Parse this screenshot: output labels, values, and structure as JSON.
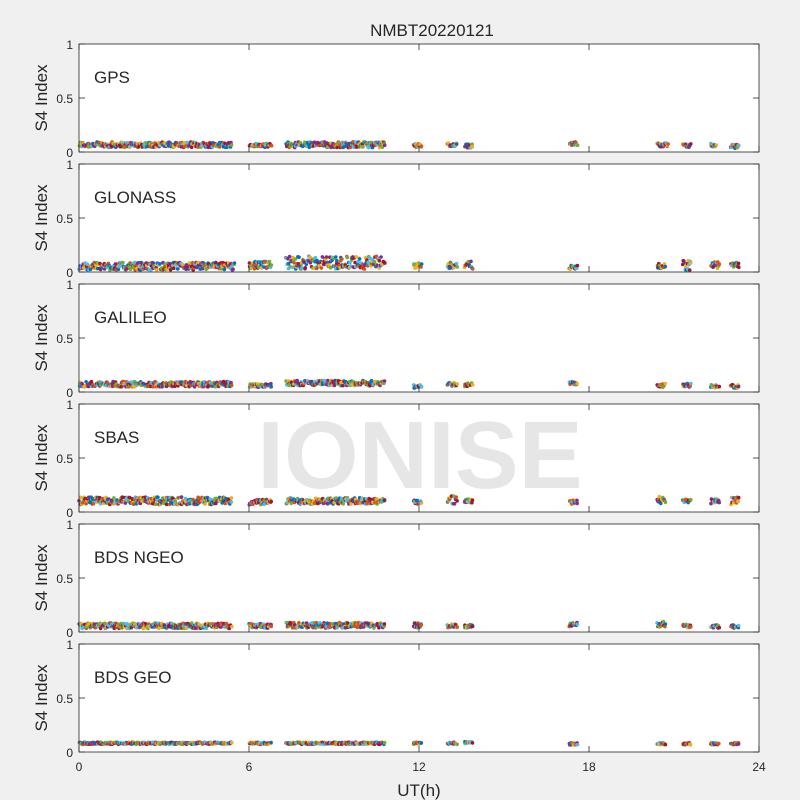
{
  "figure": {
    "title": "NMBT20220121",
    "xlabel": "UT(h)",
    "watermark": "IONISE",
    "background": "#f0f0f0",
    "axes_background": "#ffffff",
    "axis_color": "#262626"
  },
  "chart_data": {
    "type": "scatter",
    "xlim": [
      0,
      24
    ],
    "ylim": [
      0,
      1
    ],
    "x_ticks": [
      0,
      6,
      12,
      18,
      24
    ],
    "y_ticks": [
      0,
      0.5,
      1
    ],
    "ylabel": "S4 Index",
    "colors": [
      "#0072bd",
      "#d95319",
      "#edb120",
      "#7e2f8e",
      "#77ac30",
      "#4dbeee",
      "#a2142f"
    ],
    "panels": [
      {
        "label": "GPS",
        "show_x_ticks": false,
        "base": 0.055,
        "spread": 0.045,
        "segments": [
          {
            "x": [
              0,
              5.4
            ],
            "base": 0.065,
            "spread": 0.05
          },
          {
            "x": [
              6.0,
              6.8
            ],
            "base": 0.06
          },
          {
            "x": [
              7.3,
              10.8
            ],
            "base": 0.065,
            "spread": 0.055
          },
          {
            "x": [
              11.8,
              12.1
            ],
            "base": 0.06
          },
          {
            "x": [
              13.0,
              13.35
            ],
            "base": 0.065
          },
          {
            "x": [
              13.6,
              13.9
            ],
            "base": 0.055
          },
          {
            "x": [
              17.3,
              17.6
            ],
            "base": 0.075
          },
          {
            "x": [
              20.4,
              20.8
            ],
            "base": 0.065
          },
          {
            "x": [
              21.3,
              21.6
            ],
            "base": 0.06
          },
          {
            "x": [
              22.3,
              22.5
            ],
            "base": 0.06
          },
          {
            "x": [
              23.0,
              23.3
            ],
            "base": 0.05
          }
        ]
      },
      {
        "label": "GLONASS",
        "show_x_ticks": false,
        "segments": [
          {
            "x": [
              0,
              5.5
            ],
            "base": 0.05,
            "spread": 0.07
          },
          {
            "x": [
              6.0,
              6.8
            ],
            "base": 0.06,
            "spread": 0.07
          },
          {
            "x": [
              7.3,
              10.8
            ],
            "base": 0.08,
            "spread": 0.12
          },
          {
            "x": [
              11.8,
              12.1
            ],
            "base": 0.06,
            "spread": 0.06
          },
          {
            "x": [
              13.0,
              13.35
            ],
            "base": 0.06,
            "spread": 0.06
          },
          {
            "x": [
              13.6,
              13.9
            ],
            "base": 0.06,
            "spread": 0.07
          },
          {
            "x": [
              17.3,
              17.6
            ],
            "base": 0.04
          },
          {
            "x": [
              20.4,
              20.7
            ],
            "base": 0.05,
            "spread": 0.05
          },
          {
            "x": [
              21.3,
              21.6
            ],
            "base": 0.06,
            "spread": 0.1
          },
          {
            "x": [
              22.3,
              22.6
            ],
            "base": 0.06,
            "spread": 0.06
          },
          {
            "x": [
              23.0,
              23.3
            ],
            "base": 0.06,
            "spread": 0.05
          }
        ]
      },
      {
        "label": "GALILEO",
        "show_x_ticks": false,
        "segments": [
          {
            "x": [
              0,
              5.4
            ],
            "base": 0.07,
            "spread": 0.05
          },
          {
            "x": [
              6.0,
              6.8
            ],
            "base": 0.06
          },
          {
            "x": [
              7.3,
              10.8
            ],
            "base": 0.08,
            "spread": 0.05
          },
          {
            "x": [
              11.8,
              12.1
            ],
            "base": 0.05
          },
          {
            "x": [
              13.0,
              13.35
            ],
            "base": 0.07
          },
          {
            "x": [
              13.6,
              13.9
            ],
            "base": 0.065
          },
          {
            "x": [
              17.3,
              17.6
            ],
            "base": 0.08
          },
          {
            "x": [
              20.4,
              20.7
            ],
            "base": 0.06
          },
          {
            "x": [
              21.3,
              21.6
            ],
            "base": 0.06
          },
          {
            "x": [
              22.3,
              22.6
            ],
            "base": 0.05
          },
          {
            "x": [
              23.0,
              23.3
            ],
            "base": 0.05
          }
        ]
      },
      {
        "label": "SBAS",
        "show_x_ticks": false,
        "segments": [
          {
            "x": [
              0,
              5.4
            ],
            "base": 0.1,
            "spread": 0.07
          },
          {
            "x": [
              6.0,
              6.8
            ],
            "base": 0.09,
            "spread": 0.05
          },
          {
            "x": [
              7.3,
              10.8
            ],
            "base": 0.1,
            "spread": 0.06
          },
          {
            "x": [
              11.8,
              12.1
            ],
            "base": 0.09
          },
          {
            "x": [
              13.0,
              13.35
            ],
            "base": 0.11,
            "spread": 0.08
          },
          {
            "x": [
              13.6,
              13.9
            ],
            "base": 0.1
          },
          {
            "x": [
              17.3,
              17.6
            ],
            "base": 0.09
          },
          {
            "x": [
              20.4,
              20.7
            ],
            "base": 0.11,
            "spread": 0.07
          },
          {
            "x": [
              21.3,
              21.6
            ],
            "base": 0.1
          },
          {
            "x": [
              22.3,
              22.6
            ],
            "base": 0.1,
            "spread": 0.05
          },
          {
            "x": [
              23.0,
              23.3
            ],
            "base": 0.1,
            "spread": 0.07
          }
        ]
      },
      {
        "label": "BDS NGEO",
        "show_x_ticks": false,
        "segments": [
          {
            "x": [
              0,
              5.4
            ],
            "base": 0.055,
            "spread": 0.05
          },
          {
            "x": [
              6.0,
              6.8
            ],
            "base": 0.055,
            "spread": 0.04
          },
          {
            "x": [
              7.3,
              10.8
            ],
            "base": 0.06,
            "spread": 0.05
          },
          {
            "x": [
              11.8,
              12.1
            ],
            "base": 0.06,
            "spread": 0.05
          },
          {
            "x": [
              13.0,
              13.35
            ],
            "base": 0.055
          },
          {
            "x": [
              13.6,
              13.9
            ],
            "base": 0.05
          },
          {
            "x": [
              17.3,
              17.6
            ],
            "base": 0.06,
            "spread": 0.05
          },
          {
            "x": [
              20.4,
              20.7
            ],
            "base": 0.07,
            "spread": 0.05
          },
          {
            "x": [
              21.3,
              21.6
            ],
            "base": 0.055
          },
          {
            "x": [
              22.3,
              22.6
            ],
            "base": 0.05
          },
          {
            "x": [
              23.0,
              23.3
            ],
            "base": 0.05
          }
        ]
      },
      {
        "label": "BDS GEO",
        "show_x_ticks": true,
        "segments": [
          {
            "x": [
              0,
              5.4
            ],
            "base": 0.08,
            "spread": 0.02
          },
          {
            "x": [
              6.0,
              6.8
            ],
            "base": 0.08,
            "spread": 0.02
          },
          {
            "x": [
              7.3,
              10.8
            ],
            "base": 0.08,
            "spread": 0.02
          },
          {
            "x": [
              11.8,
              12.1
            ],
            "base": 0.08,
            "spread": 0.02
          },
          {
            "x": [
              13.0,
              13.35
            ],
            "base": 0.08,
            "spread": 0.02
          },
          {
            "x": [
              13.6,
              13.9
            ],
            "base": 0.085,
            "spread": 0.02
          },
          {
            "x": [
              17.3,
              17.6
            ],
            "base": 0.075,
            "spread": 0.02
          },
          {
            "x": [
              20.4,
              20.7
            ],
            "base": 0.075,
            "spread": 0.02
          },
          {
            "x": [
              21.3,
              21.6
            ],
            "base": 0.075,
            "spread": 0.02
          },
          {
            "x": [
              22.3,
              22.6
            ],
            "base": 0.075,
            "spread": 0.02
          },
          {
            "x": [
              23.0,
              23.3
            ],
            "base": 0.075,
            "spread": 0.02
          }
        ]
      }
    ]
  }
}
